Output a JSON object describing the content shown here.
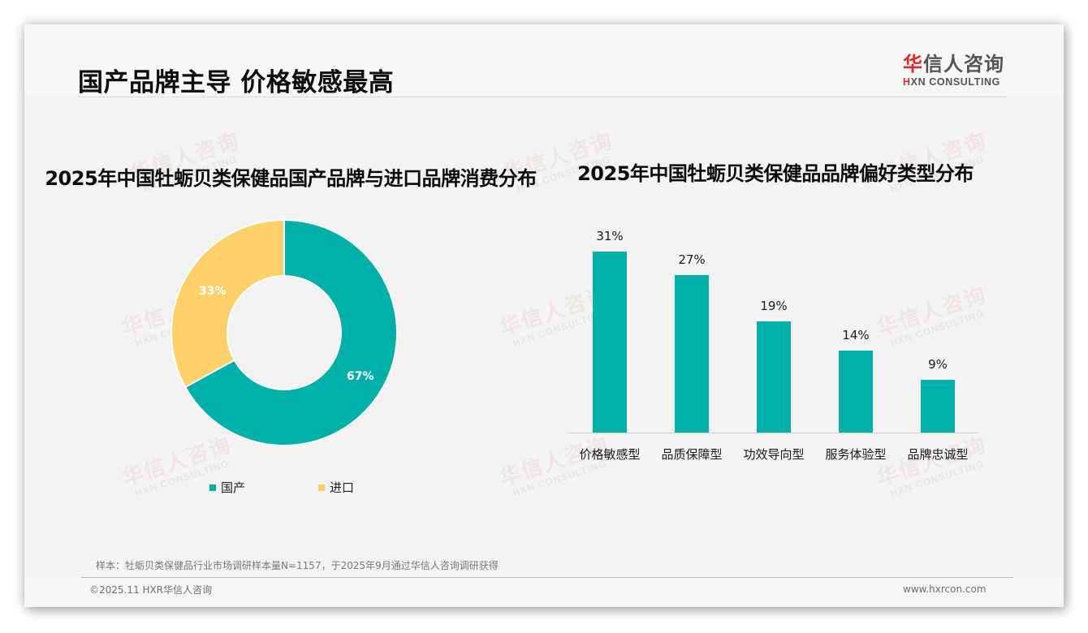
{
  "header": {
    "title": "国产品牌主导 价格敏感最高",
    "logo": {
      "cn_accent": "华",
      "cn_rest": "信人咨询",
      "en_mark": "H",
      "en_rest": "XN CONSULTING"
    }
  },
  "watermark": {
    "cn": "华信人咨询",
    "en": "HXN CONSULTING"
  },
  "colors": {
    "teal": "#00b0a8",
    "yellow": "#fdd06a",
    "brand_red": "#d92b2b"
  },
  "donut": {
    "title": "2025年中国牡蛎贝类保健品国产品牌与进口品牌消费分布",
    "labels": {
      "domestic": "67%",
      "imported": "33%"
    },
    "legend": [
      {
        "label": "国产",
        "color": "#00b0a8"
      },
      {
        "label": "进口",
        "color": "#fdd06a"
      }
    ]
  },
  "bars": {
    "title": "2025年中国牡蛎贝类保健品品牌偏好类型分布",
    "items": [
      {
        "category": "价格敏感型",
        "label": "31%",
        "value": 31
      },
      {
        "category": "品质保障型",
        "label": "27%",
        "value": 27
      },
      {
        "category": "功效导向型",
        "label": "19%",
        "value": 19
      },
      {
        "category": "服务体验型",
        "label": "14%",
        "value": 14
      },
      {
        "category": "品牌忠诚型",
        "label": "9%",
        "value": 9
      }
    ]
  },
  "footer": {
    "note": "样本：牡蛎贝类保健品行业市场调研样本量N=1157，于2025年9月通过华信人咨询调研获得",
    "copyright": "©2025.11 HXR华信人咨询",
    "site": "www.hxrcon.com"
  },
  "chart_data": [
    {
      "type": "pie",
      "title": "2025年中国牡蛎贝类保健品国产品牌与进口品牌消费分布",
      "categories": [
        "国产",
        "进口"
      ],
      "values": [
        67,
        33
      ],
      "unit": "%",
      "donut": true,
      "legend_position": "bottom",
      "colors": [
        "#00b0a8",
        "#fdd06a"
      ]
    },
    {
      "type": "bar",
      "title": "2025年中国牡蛎贝类保健品品牌偏好类型分布",
      "categories": [
        "价格敏感型",
        "品质保障型",
        "功效导向型",
        "服务体验型",
        "品牌忠诚型"
      ],
      "values": [
        31,
        27,
        19,
        14,
        9
      ],
      "unit": "%",
      "xlabel": "",
      "ylabel": "",
      "ylim": [
        0,
        31
      ],
      "grid": false,
      "data_labels": true,
      "color": "#00b0a8"
    }
  ]
}
